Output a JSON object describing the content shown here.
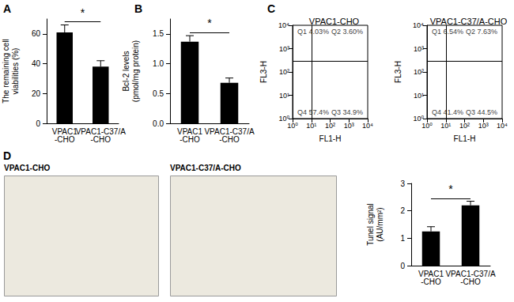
{
  "chart_data": [
    {
      "panel": "A",
      "type": "bar",
      "categories": [
        "VPAC1-CHO",
        "VPAC1-C37/A-CHO"
      ],
      "values": [
        61,
        38
      ],
      "errors": [
        5,
        4
      ],
      "ylabel": "The remaining cell viabilities (%)",
      "ylim": [
        0,
        70
      ],
      "yticks": [
        0,
        20,
        40,
        60
      ],
      "color": "#000000",
      "grid": false,
      "annotation": "*"
    },
    {
      "panel": "B",
      "type": "bar",
      "categories": [
        "VPAC1-CHO",
        "VPAC1-C37/A-CHO"
      ],
      "values": [
        1.37,
        0.68
      ],
      "errors": [
        0.1,
        0.08
      ],
      "ylabel": "Bcl-2 levels (pmol/mg protein)",
      "ylim": [
        0,
        1.75
      ],
      "yticks": [
        {
          "value": 0,
          "label": "0.0"
        },
        0.5,
        {
          "value": 1,
          "label": "1.0"
        },
        1.5
      ],
      "color": "#000000",
      "grid": false,
      "annotation": "*"
    },
    {
      "panel": "C",
      "type": "scatter",
      "title": "VPAC1-CHO",
      "xlabel": "FL1-H",
      "ylabel": "FL3-H",
      "log": true,
      "xlim": [
        1,
        10000
      ],
      "ylim": [
        1,
        10000
      ],
      "xticks": [
        {
          "value": 1,
          "label": "10⁰"
        },
        {
          "value": 10,
          "label": "10¹"
        },
        {
          "value": 100,
          "label": "10²"
        },
        {
          "value": 1000,
          "label": "10³"
        },
        {
          "value": 10000,
          "label": "10⁴"
        }
      ],
      "yticks": [
        {
          "value": 1,
          "label": "10⁰"
        },
        {
          "value": 10,
          "label": "10¹"
        },
        {
          "value": 100,
          "label": "10²"
        },
        {
          "value": 1000,
          "label": "10³"
        },
        {
          "value": 10000,
          "label": "10⁴"
        }
      ],
      "grid": false,
      "gate": {
        "x": 10,
        "y": 300
      },
      "quadrants": [
        {
          "name": "Q1",
          "label": "4.03%"
        },
        {
          "name": "Q2",
          "label": "3.60%"
        },
        {
          "name": "Q3",
          "label": "34.9%"
        },
        {
          "name": "Q4",
          "label": "57.4%"
        }
      ]
    },
    {
      "type": "scatter",
      "title": "VPAC1-C37/A-CHO",
      "xlabel": "FL1-H",
      "ylabel": "FL3-H",
      "log": true,
      "xlim": [
        1,
        10000
      ],
      "ylim": [
        1,
        10000
      ],
      "xticks": [
        {
          "value": 1,
          "label": "10⁰"
        },
        {
          "value": 10,
          "label": "10¹"
        },
        {
          "value": 100,
          "label": "10²"
        },
        {
          "value": 1000,
          "label": "10³"
        },
        {
          "value": 10000,
          "label": "10⁴"
        }
      ],
      "yticks": [
        {
          "value": 1,
          "label": "10⁰"
        },
        {
          "value": 10,
          "label": "10¹"
        },
        {
          "value": 100,
          "label": "10²"
        },
        {
          "value": 1000,
          "label": "10³"
        },
        {
          "value": 10000,
          "label": "10⁴"
        }
      ],
      "grid": false,
      "gate": {
        "x": 10,
        "y": 300
      },
      "quadrants": [
        {
          "name": "Q1",
          "label": "6.54%"
        },
        {
          "name": "Q2",
          "label": "7.63%"
        },
        {
          "name": "Q3",
          "label": "44.5%"
        },
        {
          "name": "Q4",
          "label": "41.4%"
        }
      ]
    },
    {
      "type": "bar",
      "categories": [
        "VPAC1-CHO",
        "VPAC1-C37/A-CHO"
      ],
      "values": [
        1.25,
        2.2
      ],
      "errors": [
        0.17,
        0.15
      ],
      "ylabel": "Tunel signal (AU/mm²)",
      "ylim": [
        0,
        3
      ],
      "yticks": [
        0,
        1,
        2,
        3
      ],
      "color": "#000000",
      "grid": false,
      "annotation": "*"
    }
  ],
  "images": [
    {
      "panel": "D",
      "title": "VPAC1-CHO"
    },
    {
      "title": "VPAC1-C37/A-CHO"
    }
  ]
}
